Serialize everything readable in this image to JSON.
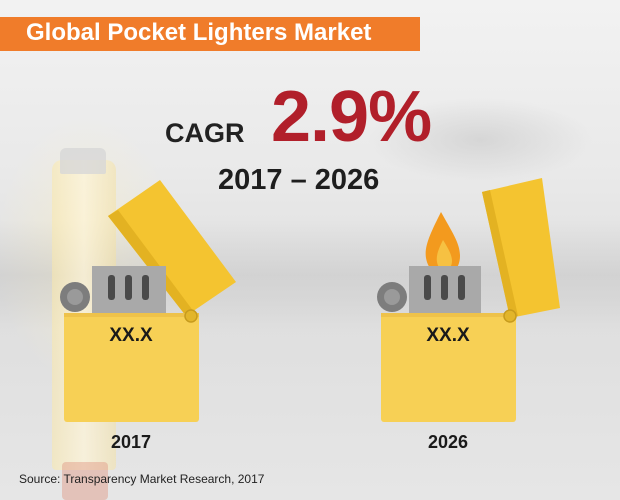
{
  "title": "Global Pocket Lighters Market",
  "cagr": {
    "label": "CAGR",
    "value": "2.9%",
    "period": "2017 – 2026"
  },
  "chart_data": {
    "type": "other",
    "title": "Global Pocket Lighters Market",
    "cagr_percent": 2.9,
    "period": [
      "2017",
      "2026"
    ],
    "categories": [
      "2017",
      "2026"
    ],
    "value_labels": [
      "XX.X",
      "XX.X"
    ]
  },
  "lighters": [
    {
      "year": "2017",
      "value": "XX.X",
      "lit": false
    },
    {
      "year": "2026",
      "value": "XX.X",
      "lit": true
    }
  ],
  "source": "Source: Transparency Market Research, 2017",
  "colors": {
    "banner": "#f07c2a",
    "cagr_value": "#b11f2a",
    "lighter_body": "#f7d055",
    "lighter_lid": "#f4c430",
    "flame_outer": "#f39a1e",
    "flame_inner": "#f6c142",
    "metal": "#a9a9a9"
  }
}
